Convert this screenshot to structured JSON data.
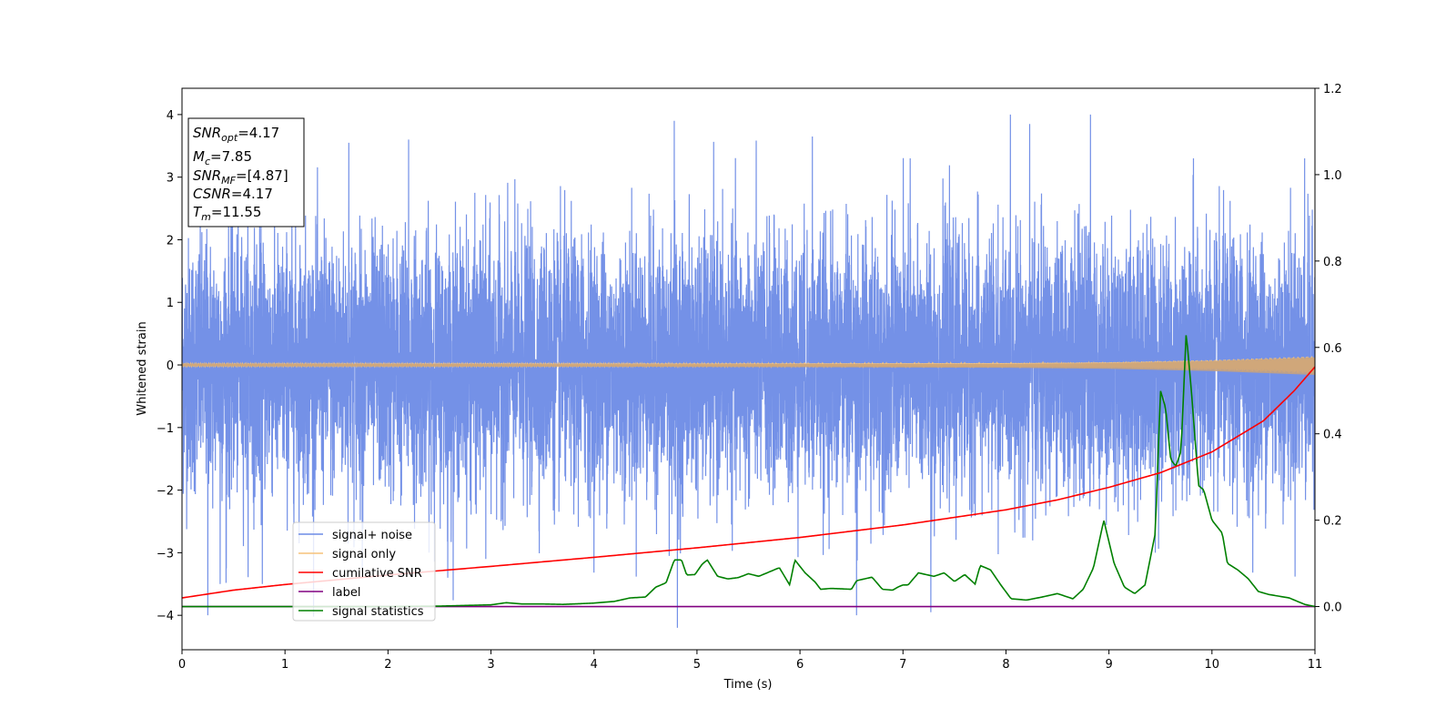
{
  "chart_data": {
    "type": "line",
    "title": "",
    "xlabel": "Time (s)",
    "ylabel": "Whitened strain",
    "xlim": [
      0,
      11
    ],
    "ylim": [
      -4.55,
      4.42
    ],
    "ylim_right": [
      -0.1,
      1.2
    ],
    "x_ticks": [
      0,
      1,
      2,
      3,
      4,
      5,
      6,
      7,
      8,
      9,
      10,
      11
    ],
    "y_ticks": [
      -4,
      -3,
      -2,
      -1,
      0,
      1,
      2,
      3,
      4
    ],
    "y_ticks_right": [
      "0.0",
      "0.2",
      "0.4",
      "0.6",
      "0.8",
      "1.0",
      "1.2"
    ],
    "grid": false,
    "legend_position": "lower-left",
    "annotation_box": {
      "lines": [
        {
          "sym": "SNR",
          "sub": "opt",
          "value": "=4.17"
        },
        {
          "sym": "M",
          "sub": "c",
          "value": "=7.85"
        },
        {
          "sym": "SNR",
          "sub": "MF",
          "value": "=[4.87]"
        },
        {
          "sym": "CSNR",
          "sub": "",
          "value": "=4.17"
        },
        {
          "sym": "T",
          "sub": "m",
          "value": "=11.55"
        }
      ]
    },
    "series": [
      {
        "name": "signal+ noise",
        "color": "#6d8be6",
        "axis": "left",
        "noise_std": 1.0,
        "range": [
          -4.2,
          4.0
        ],
        "spikes": [
          [
            0.25,
            -4.0
          ],
          [
            0.37,
            -3.5
          ],
          [
            0.43,
            -3.25
          ],
          [
            0.78,
            -3.5
          ],
          [
            1.62,
            3.55
          ],
          [
            1.75,
            -3.3
          ],
          [
            2.2,
            3.6
          ],
          [
            2.58,
            -3.4
          ],
          [
            2.95,
            -3.1
          ],
          [
            4.73,
            -3.05
          ],
          [
            4.78,
            3.9
          ],
          [
            4.81,
            -4.2
          ],
          [
            6.12,
            3.65
          ],
          [
            6.55,
            -4.0
          ],
          [
            7.07,
            3.3
          ],
          [
            7.27,
            -3.95
          ],
          [
            8.23,
            3.85
          ],
          [
            8.82,
            4.0
          ],
          [
            9.45,
            -3.0
          ],
          [
            9.82,
            3.3
          ],
          [
            10.9,
            3.3
          ]
        ]
      },
      {
        "name": "signal only",
        "color": "#f5c27a",
        "axis": "left",
        "envelope": [
          [
            0,
            0.02
          ],
          [
            4,
            0.02
          ],
          [
            6,
            0.025
          ],
          [
            8,
            0.03
          ],
          [
            9,
            0.045
          ],
          [
            10,
            0.08
          ],
          [
            10.5,
            0.11
          ],
          [
            11,
            0.14
          ]
        ]
      },
      {
        "name": "cumilative SNR",
        "color": "#ff0000",
        "axis": "right",
        "points": [
          [
            0,
            0.02
          ],
          [
            0.5,
            0.038
          ],
          [
            1,
            0.051
          ],
          [
            2,
            0.073
          ],
          [
            3,
            0.093
          ],
          [
            4,
            0.114
          ],
          [
            5,
            0.136
          ],
          [
            6,
            0.16
          ],
          [
            7,
            0.189
          ],
          [
            8,
            0.224
          ],
          [
            8.5,
            0.247
          ],
          [
            9,
            0.276
          ],
          [
            9.5,
            0.31
          ],
          [
            10,
            0.358
          ],
          [
            10.5,
            0.43
          ],
          [
            10.8,
            0.5
          ],
          [
            11,
            0.555
          ]
        ]
      },
      {
        "name": "label",
        "color": "#800080",
        "axis": "right",
        "points": [
          [
            0,
            0.0
          ],
          [
            11,
            0.0
          ]
        ]
      },
      {
        "name": "signal statistics",
        "color": "#008000",
        "axis": "right",
        "points": [
          [
            0,
            0.0
          ],
          [
            0.5,
            0.0
          ],
          [
            1,
            0.0
          ],
          [
            1.5,
            0.0
          ],
          [
            2,
            0.0
          ],
          [
            2.5,
            0.001
          ],
          [
            3,
            0.004
          ],
          [
            3.15,
            0.009
          ],
          [
            3.3,
            0.006
          ],
          [
            3.5,
            0.006
          ],
          [
            3.7,
            0.005
          ],
          [
            4,
            0.008
          ],
          [
            4.2,
            0.012
          ],
          [
            4.35,
            0.02
          ],
          [
            4.5,
            0.022
          ],
          [
            4.6,
            0.045
          ],
          [
            4.7,
            0.055
          ],
          [
            4.78,
            0.108
          ],
          [
            4.85,
            0.108
          ],
          [
            4.9,
            0.073
          ],
          [
            4.98,
            0.074
          ],
          [
            5.05,
            0.098
          ],
          [
            5.1,
            0.108
          ],
          [
            5.2,
            0.07
          ],
          [
            5.3,
            0.064
          ],
          [
            5.4,
            0.067
          ],
          [
            5.5,
            0.076
          ],
          [
            5.6,
            0.07
          ],
          [
            5.7,
            0.08
          ],
          [
            5.8,
            0.09
          ],
          [
            5.9,
            0.05
          ],
          [
            5.95,
            0.108
          ],
          [
            6.05,
            0.078
          ],
          [
            6.15,
            0.056
          ],
          [
            6.2,
            0.04
          ],
          [
            6.3,
            0.042
          ],
          [
            6.5,
            0.04
          ],
          [
            6.55,
            0.06
          ],
          [
            6.7,
            0.068
          ],
          [
            6.8,
            0.04
          ],
          [
            6.9,
            0.038
          ],
          [
            6.95,
            0.045
          ],
          [
            7.0,
            0.05
          ],
          [
            7.05,
            0.05
          ],
          [
            7.15,
            0.078
          ],
          [
            7.3,
            0.07
          ],
          [
            7.4,
            0.078
          ],
          [
            7.5,
            0.058
          ],
          [
            7.6,
            0.074
          ],
          [
            7.7,
            0.052
          ],
          [
            7.75,
            0.095
          ],
          [
            7.85,
            0.085
          ],
          [
            7.95,
            0.05
          ],
          [
            8.05,
            0.018
          ],
          [
            8.2,
            0.015
          ],
          [
            8.35,
            0.022
          ],
          [
            8.5,
            0.03
          ],
          [
            8.65,
            0.018
          ],
          [
            8.75,
            0.04
          ],
          [
            8.85,
            0.09
          ],
          [
            8.95,
            0.2
          ],
          [
            9.05,
            0.1
          ],
          [
            9.15,
            0.045
          ],
          [
            9.25,
            0.03
          ],
          [
            9.35,
            0.05
          ],
          [
            9.45,
            0.17
          ],
          [
            9.5,
            0.5
          ],
          [
            9.55,
            0.46
          ],
          [
            9.6,
            0.34
          ],
          [
            9.65,
            0.325
          ],
          [
            9.7,
            0.36
          ],
          [
            9.75,
            0.635
          ],
          [
            9.8,
            0.5
          ],
          [
            9.87,
            0.28
          ],
          [
            9.92,
            0.27
          ],
          [
            10.0,
            0.2
          ],
          [
            10.1,
            0.17
          ],
          [
            10.15,
            0.1
          ],
          [
            10.25,
            0.085
          ],
          [
            10.35,
            0.065
          ],
          [
            10.45,
            0.035
          ],
          [
            10.55,
            0.028
          ],
          [
            10.65,
            0.024
          ],
          [
            10.75,
            0.02
          ],
          [
            10.9,
            0.005
          ],
          [
            11,
            0.0
          ]
        ]
      }
    ]
  }
}
